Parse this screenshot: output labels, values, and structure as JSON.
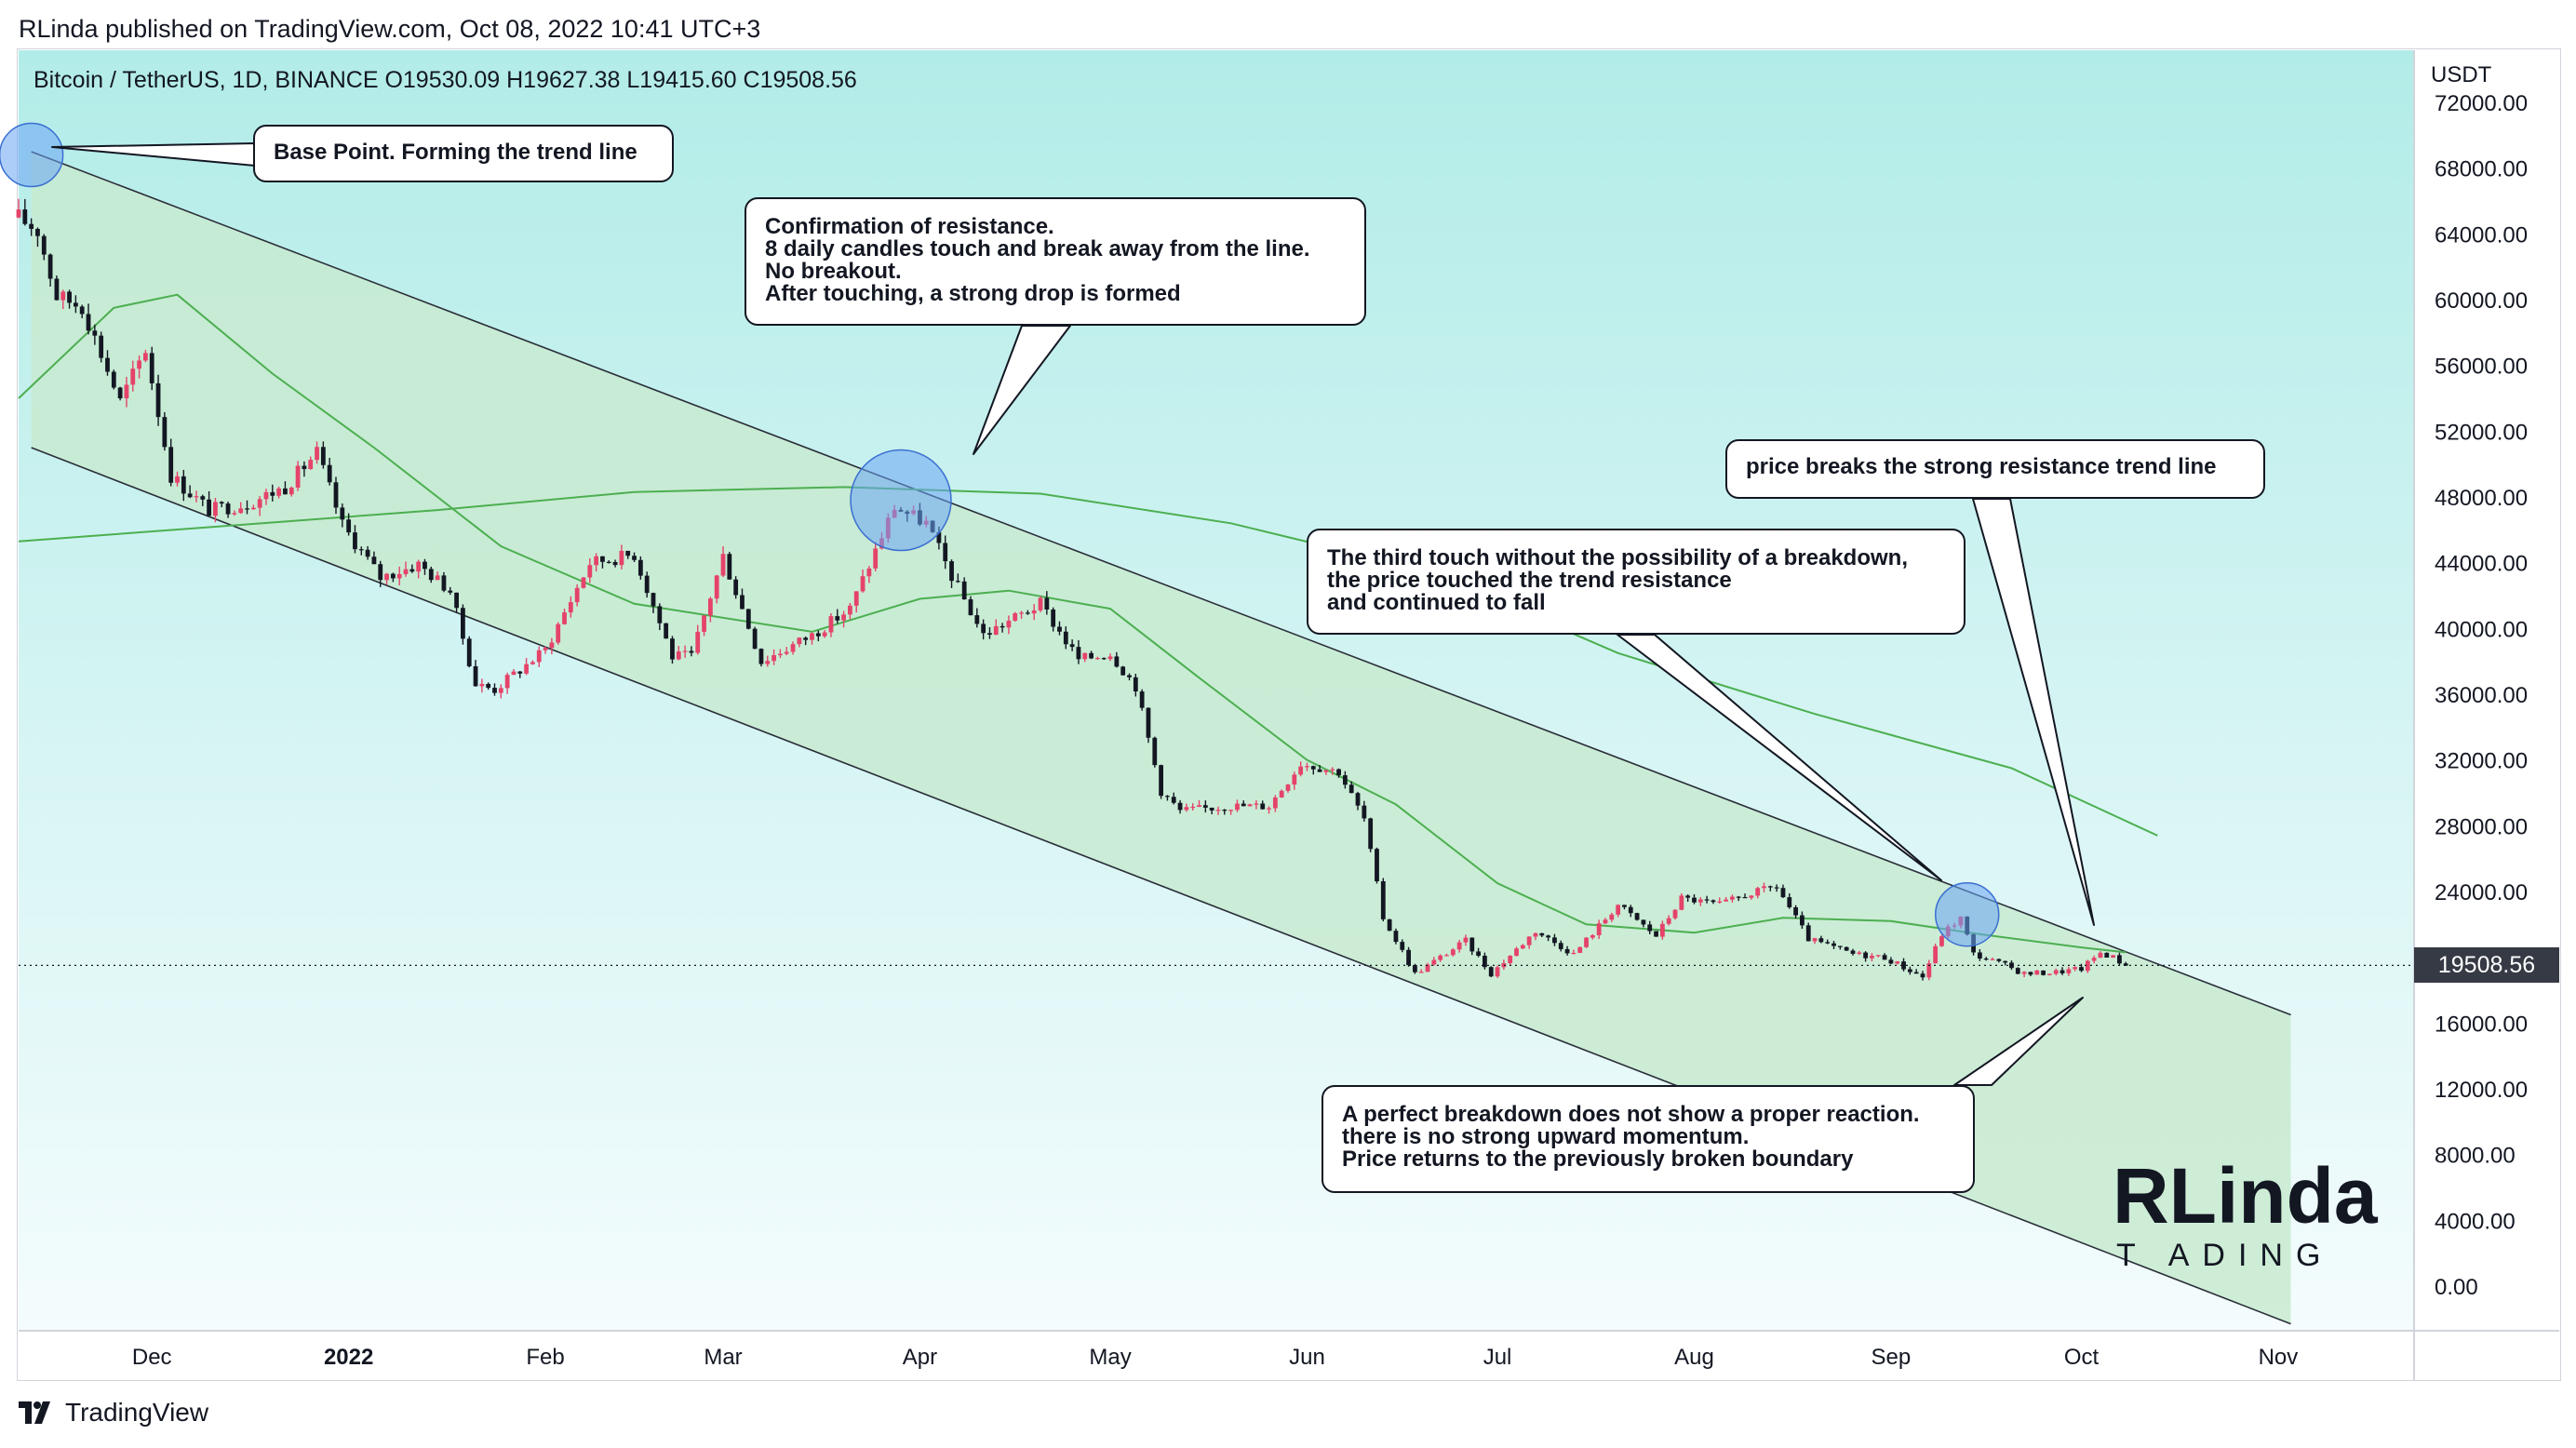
{
  "header": {
    "published_by": "RLinda published on TradingView.com, Oct 08, 2022 10:41 UTC+3"
  },
  "symbol": {
    "info": "Bitcoin / TetherUS, 1D, BINANCE  O19530.09  H19627.38  L19415.60  C19508.56"
  },
  "footer": {
    "brand": "TradingView"
  },
  "logo": {
    "main": "RLinda",
    "sub": "T   ADING"
  },
  "colors": {
    "bg_top": "#b2ece8",
    "bg_bottom": "#f4fcfd",
    "channel_fill": "#c8ead0",
    "up_candle": "#e5436a",
    "down_candle": "#131722",
    "ma": "#4caf50",
    "highlight_circle": "#6aa4f4"
  },
  "callouts": {
    "base_point": "Base Point. Forming the trend line",
    "confirmation": "Confirmation of resistance.\n8 daily candles touch and break away from the line.\nNo breakout.\nAfter touching, a strong drop is formed",
    "third_touch": "The third touch without the possibility of a breakdown,\nthe price touched the trend resistance\nand continued to fall",
    "price_breaks": "price breaks the strong resistance trend line",
    "perfect_breakdown": "A perfect breakdown does not show a proper reaction.\nthere is no strong upward momentum.\nPrice returns to the previously broken boundary"
  },
  "chart_data": {
    "type": "candlestick",
    "title": "Bitcoin / TetherUS, 1D, BINANCE",
    "ohlc_last": {
      "open": 19530.09,
      "high": 19627.38,
      "low": 19415.6,
      "close": 19508.56
    },
    "current_price_label": "19508.56",
    "y_axis_title": "USDT",
    "ylim": [
      0,
      72000
    ],
    "y_ticks": [
      "72000.00",
      "68000.00",
      "64000.00",
      "60000.00",
      "56000.00",
      "52000.00",
      "48000.00",
      "44000.00",
      "40000.00",
      "36000.00",
      "32000.00",
      "28000.00",
      "24000.00",
      "20000.00",
      "16000.00",
      "12000.00",
      "8000.00",
      "4000.00",
      "0.00"
    ],
    "x_start": "2021-11-10",
    "x_end": "2022-11-20",
    "x_ticks": [
      {
        "date": "2021-12-01",
        "label": "Dec",
        "bold": false
      },
      {
        "date": "2022-01-01",
        "label": "2022",
        "bold": true
      },
      {
        "date": "2022-02-01",
        "label": "Feb",
        "bold": false
      },
      {
        "date": "2022-03-01",
        "label": "Mar",
        "bold": false
      },
      {
        "date": "2022-04-01",
        "label": "Apr",
        "bold": false
      },
      {
        "date": "2022-05-01",
        "label": "May",
        "bold": false
      },
      {
        "date": "2022-06-01",
        "label": "Jun",
        "bold": false
      },
      {
        "date": "2022-07-01",
        "label": "Jul",
        "bold": false
      },
      {
        "date": "2022-08-01",
        "label": "Aug",
        "bold": false
      },
      {
        "date": "2022-09-01",
        "label": "Sep",
        "bold": false
      },
      {
        "date": "2022-10-01",
        "label": "Oct",
        "bold": false
      },
      {
        "date": "2022-11-01",
        "label": "Nov",
        "bold": false
      }
    ],
    "close_path": [
      [
        "2021-11-10",
        65000
      ],
      [
        "2021-11-13",
        64200
      ],
      [
        "2021-11-16",
        60200
      ],
      [
        "2021-11-20",
        59600
      ],
      [
        "2021-11-26",
        53800
      ],
      [
        "2021-11-30",
        57000
      ],
      [
        "2021-12-04",
        49300
      ],
      [
        "2021-12-10",
        47200
      ],
      [
        "2021-12-16",
        47600
      ],
      [
        "2021-12-22",
        48600
      ],
      [
        "2021-12-27",
        50700
      ],
      [
        "2021-12-31",
        46300
      ],
      [
        "2022-01-06",
        43100
      ],
      [
        "2022-01-12",
        43900
      ],
      [
        "2022-01-17",
        42300
      ],
      [
        "2022-01-21",
        36600
      ],
      [
        "2022-01-24",
        36300
      ],
      [
        "2022-02-01",
        38700
      ],
      [
        "2022-02-08",
        44000
      ],
      [
        "2022-02-15",
        44500
      ],
      [
        "2022-02-21",
        38300
      ],
      [
        "2022-02-24",
        38300
      ],
      [
        "2022-03-01",
        44400
      ],
      [
        "2022-03-07",
        38000
      ],
      [
        "2022-03-15",
        39600
      ],
      [
        "2022-03-21",
        41200
      ],
      [
        "2022-03-28",
        47400
      ],
      [
        "2022-04-02",
        46400
      ],
      [
        "2022-04-06",
        43200
      ],
      [
        "2022-04-11",
        39600
      ],
      [
        "2022-04-20",
        41500
      ],
      [
        "2022-04-26",
        38100
      ],
      [
        "2022-05-01",
        38500
      ],
      [
        "2022-05-05",
        36500
      ],
      [
        "2022-05-09",
        30100
      ],
      [
        "2022-05-12",
        28900
      ],
      [
        "2022-05-20",
        29200
      ],
      [
        "2022-05-26",
        29200
      ],
      [
        "2022-05-31",
        31800
      ],
      [
        "2022-06-06",
        31300
      ],
      [
        "2022-06-10",
        28400
      ],
      [
        "2022-06-13",
        22400
      ],
      [
        "2022-06-18",
        19000
      ],
      [
        "2022-06-22",
        20000
      ],
      [
        "2022-06-26",
        21000
      ],
      [
        "2022-06-30",
        19000
      ],
      [
        "2022-07-07",
        21600
      ],
      [
        "2022-07-13",
        20200
      ],
      [
        "2022-07-20",
        23200
      ],
      [
        "2022-07-26",
        21300
      ],
      [
        "2022-07-30",
        23600
      ],
      [
        "2022-08-05",
        23200
      ],
      [
        "2022-08-10",
        23900
      ],
      [
        "2022-08-14",
        24300
      ],
      [
        "2022-08-19",
        21100
      ],
      [
        "2022-08-26",
        20200
      ],
      [
        "2022-08-31",
        20000
      ],
      [
        "2022-09-06",
        18800
      ],
      [
        "2022-09-09",
        21400
      ],
      [
        "2022-09-12",
        22400
      ],
      [
        "2022-09-14",
        20200
      ],
      [
        "2022-09-19",
        19500
      ],
      [
        "2022-09-22",
        19000
      ],
      [
        "2022-09-27",
        19100
      ],
      [
        "2022-10-01",
        19300
      ],
      [
        "2022-10-04",
        20300
      ],
      [
        "2022-10-06",
        20000
      ],
      [
        "2022-10-08",
        19508
      ]
    ],
    "ma_series": [
      {
        "period_hint": "fast",
        "points": [
          [
            "2021-11-10",
            54000
          ],
          [
            "2021-11-25",
            59500
          ],
          [
            "2021-12-05",
            60300
          ],
          [
            "2021-12-20",
            55500
          ],
          [
            "2022-01-05",
            51000
          ],
          [
            "2022-01-25",
            45000
          ],
          [
            "2022-02-15",
            41500
          ],
          [
            "2022-03-15",
            39800
          ],
          [
            "2022-04-01",
            41800
          ],
          [
            "2022-04-15",
            42300
          ],
          [
            "2022-05-01",
            41200
          ],
          [
            "2022-05-15",
            37000
          ],
          [
            "2022-06-01",
            32000
          ],
          [
            "2022-06-15",
            29300
          ],
          [
            "2022-07-01",
            24500
          ],
          [
            "2022-07-15",
            22000
          ],
          [
            "2022-08-01",
            21500
          ],
          [
            "2022-08-15",
            22400
          ],
          [
            "2022-09-01",
            22200
          ],
          [
            "2022-09-15",
            21400
          ],
          [
            "2022-10-01",
            20600
          ],
          [
            "2022-10-08",
            20300
          ]
        ]
      },
      {
        "period_hint": "slow",
        "points": [
          [
            "2021-11-10",
            45300
          ],
          [
            "2021-12-15",
            46300
          ],
          [
            "2022-01-15",
            47200
          ],
          [
            "2022-02-15",
            48300
          ],
          [
            "2022-03-20",
            48600
          ],
          [
            "2022-04-20",
            48200
          ],
          [
            "2022-05-20",
            46400
          ],
          [
            "2022-06-20",
            43500
          ],
          [
            "2022-07-20",
            38500
          ],
          [
            "2022-08-20",
            34800
          ],
          [
            "2022-09-20",
            31500
          ],
          [
            "2022-10-13",
            27400
          ]
        ]
      }
    ],
    "channel": {
      "upper": [
        [
          "2021-11-12",
          69000
        ],
        [
          "2022-11-03",
          16500
        ]
      ],
      "lower": [
        [
          "2021-11-12",
          51000
        ],
        [
          "2022-11-03",
          -2300
        ]
      ]
    },
    "highlight_points": [
      {
        "date": "2021-11-12",
        "price": 68800
      },
      {
        "date": "2022-03-29",
        "price": 47800
      },
      {
        "date": "2022-09-13",
        "price": 22600
      }
    ]
  }
}
